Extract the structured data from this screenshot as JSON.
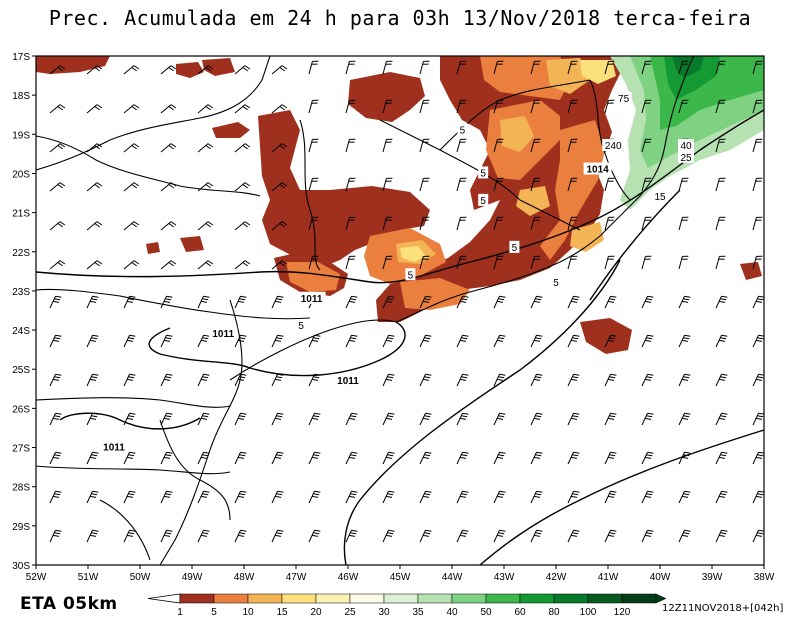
{
  "title": "Prec. Acumulada em 24 h para 03h 13/Nov/2018 terca-feira",
  "product": "ETA 05km",
  "run_stamp": "12Z11NOV2018+[042h]",
  "map": {
    "lon_range": [
      -52,
      -38
    ],
    "lat_range": [
      -30,
      -17
    ],
    "lon_ticks": [
      "52W",
      "51W",
      "50W",
      "49W",
      "48W",
      "47W",
      "46W",
      "45W",
      "44W",
      "43W",
      "42W",
      "41W",
      "40W",
      "39W",
      "38W"
    ],
    "lat_ticks": [
      "17S",
      "18S",
      "19S",
      "20S",
      "21S",
      "22S",
      "23S",
      "24S",
      "25S",
      "26S",
      "27S",
      "28S",
      "29S",
      "30S"
    ],
    "isobar_labels": [
      {
        "text": "1011",
        "lon": -46.7,
        "lat": -23.2
      },
      {
        "text": "1011",
        "lon": -48.4,
        "lat": -24.1
      },
      {
        "text": "1011",
        "lon": -46.0,
        "lat": -25.3
      },
      {
        "text": "1011",
        "lon": -50.5,
        "lat": -27.0
      },
      {
        "text": "1014",
        "lon": -41.2,
        "lat": -19.9
      }
    ],
    "contour_labels": [
      {
        "text": "5",
        "lon": -43.8,
        "lat": -18.9
      },
      {
        "text": "5",
        "lon": -43.4,
        "lat": -20.0
      },
      {
        "text": "5",
        "lon": -43.4,
        "lat": -20.7
      },
      {
        "text": "5",
        "lon": -42.8,
        "lat": -21.9
      },
      {
        "text": "5",
        "lon": -42.0,
        "lat": -22.8
      },
      {
        "text": "5",
        "lon": -44.8,
        "lat": -22.6
      },
      {
        "text": "5",
        "lon": -46.9,
        "lat": -23.9
      },
      {
        "text": "75",
        "lon": -40.7,
        "lat": -18.1
      },
      {
        "text": "240",
        "lon": -40.9,
        "lat": -19.3
      },
      {
        "text": "40",
        "lon": -39.5,
        "lat": -19.3
      },
      {
        "text": "25",
        "lon": -39.5,
        "lat": -19.6
      },
      {
        "text": "15",
        "lon": -40.0,
        "lat": -20.6
      }
    ]
  },
  "legend": {
    "labels": [
      "1",
      "5",
      "10",
      "15",
      "20",
      "25",
      "30",
      "35",
      "40",
      "50",
      "60",
      "80",
      "100",
      "120"
    ],
    "colors": [
      "#a0301e",
      "#ea7f3e",
      "#f3b456",
      "#fce07c",
      "#fbf1b2",
      "#fbfbe8",
      "#dcf1d4",
      "#b5e2b0",
      "#7ed281",
      "#3cb84a",
      "#159a33",
      "#07792a",
      "#075a20",
      "#043e18"
    ]
  }
}
